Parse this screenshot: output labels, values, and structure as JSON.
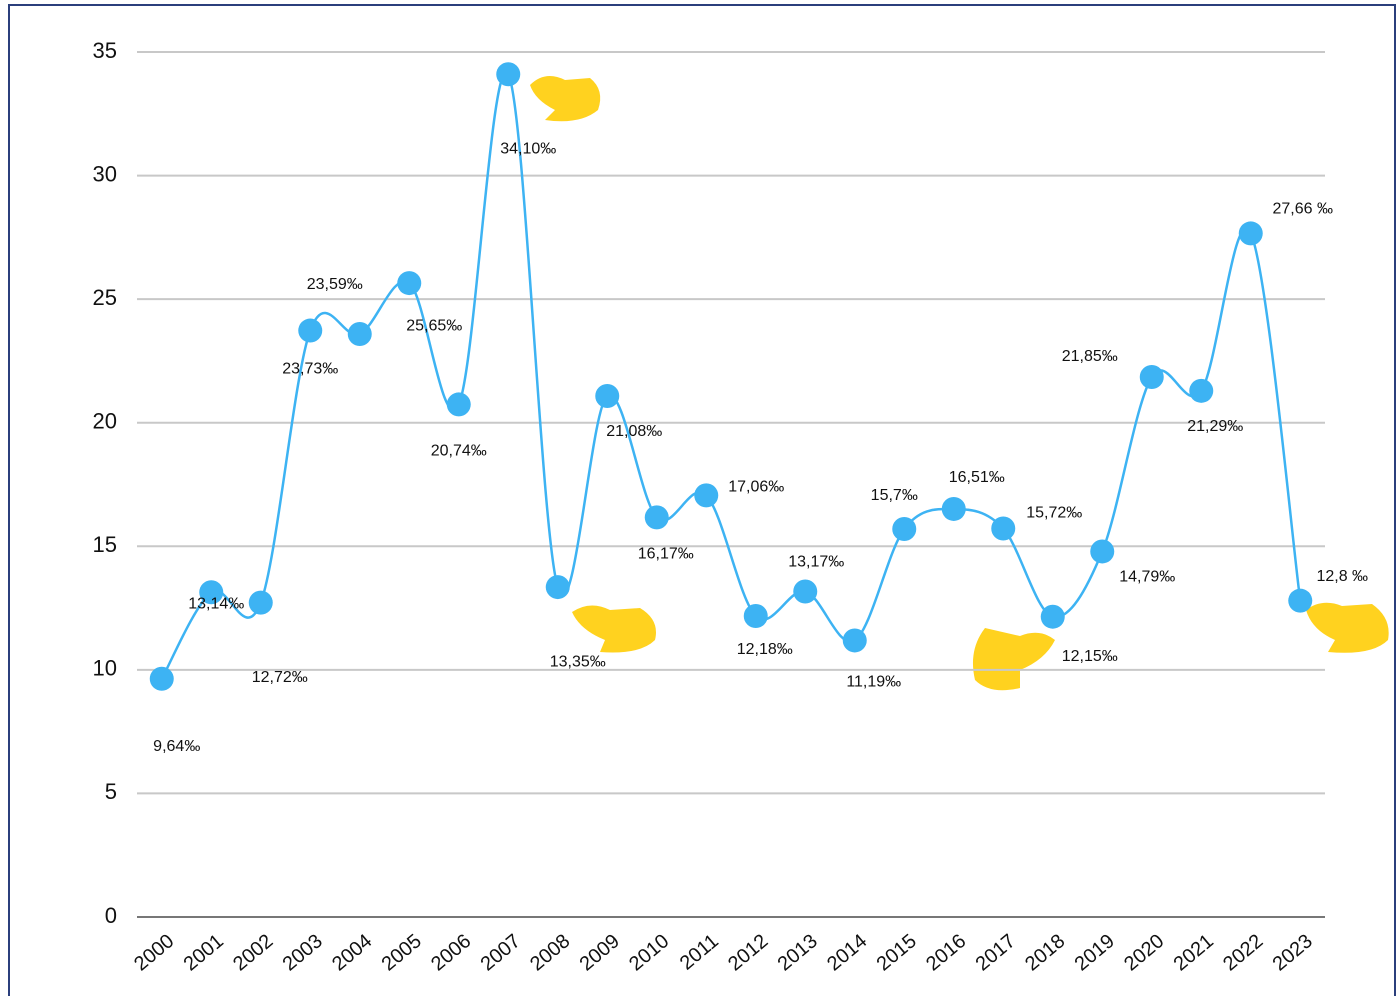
{
  "chart_data": {
    "type": "line",
    "categories": [
      "2000",
      "2001",
      "2002",
      "2003",
      "2004",
      "2005",
      "2006",
      "2007",
      "2008",
      "2009",
      "2010",
      "2011",
      "2012",
      "2013",
      "2014",
      "2015",
      "2016",
      "2017",
      "2018",
      "2019",
      "2020",
      "2021",
      "2022",
      "2023"
    ],
    "series": [
      {
        "color": "#3db3f3",
        "values": [
          9.64,
          13.14,
          12.72,
          23.73,
          23.59,
          25.65,
          20.74,
          34.1,
          13.35,
          21.08,
          16.17,
          17.06,
          12.18,
          13.17,
          11.19,
          15.7,
          16.51,
          15.72,
          12.15,
          14.79,
          21.85,
          21.29,
          27.66,
          12.8
        ],
        "value_labels": [
          "9,64‰",
          "13,14‰",
          "12,72‰",
          "23,73‰",
          "23,59‰",
          "25,65‰",
          "20,74‰",
          "34,10‰",
          "13,35‰",
          "21,08‰",
          "16,17‰",
          "17,06‰",
          "12,18‰",
          "13,17‰",
          "11,19‰",
          "15,7‰",
          "16,51‰",
          "15,72‰",
          "12,15‰",
          "14,79‰",
          "21,85‰",
          "21,29‰",
          "27,66 ‰",
          "12,8 ‰"
        ]
      }
    ],
    "ylim": [
      0,
      35
    ],
    "yticks": [
      0,
      5,
      10,
      15,
      20,
      25,
      30,
      35
    ],
    "grid": true
  }
}
